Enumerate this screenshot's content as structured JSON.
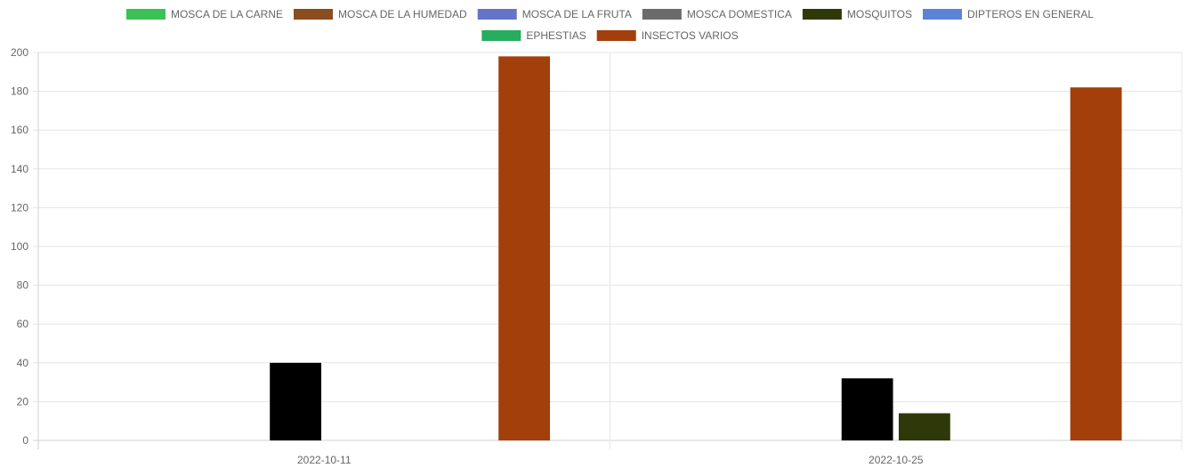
{
  "chart_data": {
    "type": "bar",
    "categories": [
      "2022-10-11",
      "2022-10-25"
    ],
    "series": [
      {
        "name": "MOSCA DE LA CARNE",
        "color": "#3cc155",
        "values": [
          0,
          0
        ]
      },
      {
        "name": "MOSCA DE LA HUMEDAD",
        "color": "#8b4c1f",
        "values": [
          0,
          0
        ]
      },
      {
        "name": "MOSCA DE LA FRUTA",
        "color": "#6674c7",
        "values": [
          0,
          0
        ]
      },
      {
        "name": "MOSCA DOMESTICA",
        "color": "#000000",
        "legend_color": "#6b6b6b",
        "values": [
          40,
          32
        ]
      },
      {
        "name": "MOSQUITOS",
        "color": "#2e3808",
        "values": [
          0,
          14
        ]
      },
      {
        "name": "DIPTEROS EN GENERAL",
        "color": "#5b83d6",
        "values": [
          0,
          0
        ]
      },
      {
        "name": "EPHESTIAS",
        "color": "#26ad5d",
        "values": [
          0,
          0
        ]
      },
      {
        "name": "INSECTOS VARIOS",
        "color": "#a23f0b",
        "values": [
          198,
          182
        ]
      }
    ],
    "ylim": [
      0,
      200
    ],
    "yticks": [
      "0",
      "20",
      "40",
      "60",
      "80",
      "100",
      "120",
      "140",
      "160",
      "180",
      "200"
    ],
    "grid": true,
    "legend_position": "top"
  }
}
